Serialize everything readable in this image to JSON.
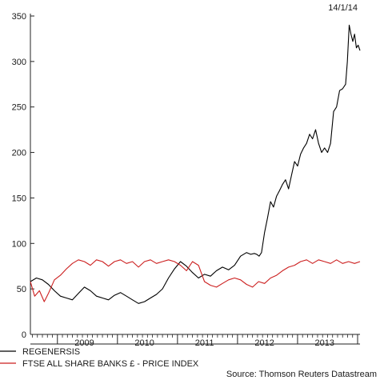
{
  "chart_data": {
    "type": "line",
    "date_label": "14/1/14",
    "source": "Source: Thomson Reuters Datastream",
    "ylim": [
      0,
      350
    ],
    "y_ticks": [
      0,
      50,
      100,
      150,
      200,
      250,
      300,
      350
    ],
    "y_tick_labels": [
      "0",
      "50",
      "100",
      "150",
      "200",
      "250",
      "300",
      "350"
    ],
    "xlim": [
      2008.55,
      2014.04
    ],
    "x_tick_labels": [
      "2009",
      "2010",
      "2011",
      "2012",
      "2013"
    ],
    "x_tick_positions": [
      2009.45,
      2010.45,
      2011.45,
      2012.45,
      2013.45
    ],
    "year_boundaries": [
      2009.0,
      2010.0,
      2011.0,
      2012.0,
      2013.0,
      2014.0
    ],
    "legend_position": "bottom-left",
    "grid": false,
    "series": [
      {
        "name": "REGENERSIS",
        "color": "#000000",
        "x": [
          2008.55,
          2008.65,
          2008.75,
          2008.85,
          2008.95,
          2009.05,
          2009.15,
          2009.25,
          2009.35,
          2009.45,
          2009.55,
          2009.65,
          2009.75,
          2009.85,
          2009.95,
          2010.05,
          2010.15,
          2010.25,
          2010.35,
          2010.45,
          2010.55,
          2010.65,
          2010.75,
          2010.85,
          2010.95,
          2011.05,
          2011.15,
          2011.25,
          2011.35,
          2011.45,
          2011.55,
          2011.65,
          2011.75,
          2011.85,
          2011.95,
          2012.05,
          2012.15,
          2012.22,
          2012.28,
          2012.32,
          2012.36,
          2012.4,
          2012.45,
          2012.5,
          2012.55,
          2012.6,
          2012.65,
          2012.7,
          2012.75,
          2012.8,
          2012.85,
          2012.9,
          2012.95,
          2013.0,
          2013.05,
          2013.1,
          2013.15,
          2013.2,
          2013.25,
          2013.3,
          2013.35,
          2013.4,
          2013.45,
          2013.5,
          2013.55,
          2013.6,
          2013.65,
          2013.7,
          2013.75,
          2013.8,
          2013.83,
          2013.86,
          2013.89,
          2013.92,
          2013.95,
          2013.98,
          2014.01,
          2014.04
        ],
        "values": [
          58,
          62,
          60,
          55,
          48,
          42,
          40,
          38,
          45,
          52,
          48,
          42,
          40,
          38,
          43,
          46,
          42,
          38,
          34,
          36,
          40,
          44,
          50,
          62,
          72,
          80,
          75,
          68,
          62,
          66,
          64,
          70,
          74,
          71,
          76,
          86,
          90,
          88,
          89,
          88,
          86,
          90,
          112,
          128,
          146,
          140,
          152,
          158,
          165,
          170,
          160,
          175,
          190,
          185,
          198,
          205,
          210,
          220,
          215,
          225,
          210,
          200,
          205,
          200,
          210,
          245,
          250,
          268,
          270,
          275,
          300,
          340,
          330,
          322,
          330,
          315,
          318,
          312
        ]
      },
      {
        "name": "FTSE ALL SHARE BANKS £ - PRICE INDEX",
        "color": "#cc1f1f",
        "x": [
          2008.55,
          2008.62,
          2008.7,
          2008.78,
          2008.85,
          2008.95,
          2009.05,
          2009.15,
          2009.25,
          2009.35,
          2009.45,
          2009.55,
          2009.65,
          2009.75,
          2009.85,
          2009.95,
          2010.05,
          2010.15,
          2010.25,
          2010.35,
          2010.45,
          2010.55,
          2010.65,
          2010.75,
          2010.85,
          2010.95,
          2011.05,
          2011.15,
          2011.25,
          2011.35,
          2011.45,
          2011.55,
          2011.65,
          2011.75,
          2011.85,
          2011.95,
          2012.05,
          2012.15,
          2012.25,
          2012.35,
          2012.45,
          2012.55,
          2012.65,
          2012.75,
          2012.85,
          2012.95,
          2013.05,
          2013.15,
          2013.25,
          2013.35,
          2013.45,
          2013.55,
          2013.65,
          2013.75,
          2013.85,
          2013.95,
          2014.04
        ],
        "values": [
          58,
          42,
          48,
          36,
          45,
          60,
          65,
          72,
          78,
          82,
          80,
          76,
          82,
          80,
          75,
          80,
          82,
          78,
          80,
          74,
          80,
          82,
          78,
          80,
          82,
          80,
          76,
          70,
          80,
          76,
          58,
          54,
          52,
          56,
          60,
          62,
          60,
          55,
          52,
          58,
          56,
          62,
          65,
          70,
          74,
          76,
          80,
          82,
          78,
          82,
          80,
          78,
          82,
          78,
          80,
          78,
          80
        ]
      }
    ]
  }
}
